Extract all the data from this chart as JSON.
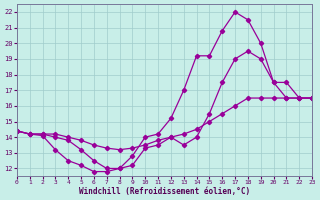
{
  "background_color": "#c8eee8",
  "grid_color": "#a0cccc",
  "line_color": "#990099",
  "xlim": [
    0,
    23
  ],
  "ylim": [
    11.5,
    22.5
  ],
  "xticks": [
    0,
    1,
    2,
    3,
    4,
    5,
    6,
    7,
    8,
    9,
    10,
    11,
    12,
    13,
    14,
    15,
    16,
    17,
    18,
    19,
    20,
    21,
    22,
    23
  ],
  "yticks": [
    12,
    13,
    14,
    15,
    16,
    17,
    18,
    19,
    20,
    21,
    22
  ],
  "xlabel": "Windchill (Refroidissement éolien,°C)",
  "line1_x": [
    0,
    1,
    2,
    3,
    4,
    5,
    6,
    7,
    8,
    9,
    10,
    11,
    12,
    13,
    14,
    15,
    16,
    17,
    18,
    19,
    20,
    21,
    22,
    23
  ],
  "line1_y": [
    14.4,
    14.2,
    14.2,
    14.2,
    14.0,
    13.8,
    13.5,
    13.3,
    13.2,
    13.3,
    13.5,
    13.8,
    14.0,
    14.2,
    14.5,
    15.0,
    15.5,
    16.0,
    16.5,
    16.5,
    16.5,
    16.5,
    16.5,
    16.5
  ],
  "line2_x": [
    0,
    1,
    2,
    3,
    4,
    5,
    6,
    7,
    8,
    9,
    10,
    11,
    12,
    13,
    14,
    15,
    16,
    17,
    18,
    19,
    20,
    21,
    22,
    23
  ],
  "line2_y": [
    14.4,
    14.2,
    14.2,
    14.0,
    13.8,
    13.2,
    12.5,
    12.0,
    12.0,
    12.2,
    13.3,
    13.5,
    14.0,
    13.5,
    14.0,
    15.5,
    17.5,
    19.0,
    19.5,
    19.0,
    17.5,
    17.5,
    16.5,
    16.5
  ],
  "line3_x": [
    0,
    1,
    2,
    3,
    4,
    5,
    6,
    7,
    8,
    9,
    10,
    11,
    12,
    13,
    14,
    15,
    16,
    17,
    18,
    19,
    20,
    21,
    22,
    23
  ],
  "line3_y": [
    14.4,
    14.2,
    14.1,
    13.2,
    12.5,
    12.2,
    11.8,
    11.8,
    12.0,
    12.8,
    14.0,
    14.2,
    15.2,
    17.0,
    19.2,
    19.2,
    20.8,
    22.0,
    21.5,
    20.0,
    17.5,
    16.5,
    16.5,
    16.5
  ]
}
